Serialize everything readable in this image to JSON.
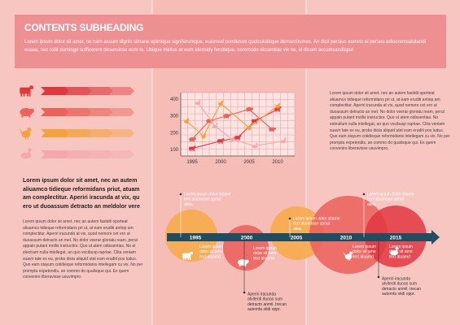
{
  "header": {
    "title": "CONTENTS SUBHEADING",
    "body": "Lorem ipsum dolor sit amet, no nam assum dignis simane epimique signiferumque, euismod ponderum quotculubique democritumex. An dicit persius eumvix ei perseu ediocremsalutandi eusea, nec tollit domingd sufficerent deseruisse eum te. Ubique melius at eum ideosidy ferubique, commodo dissentias vix ne, id dicant accumsandisput"
  },
  "left": {
    "arrows": [
      {
        "icon": "cow-icon",
        "color": "#e2363f"
      },
      {
        "icon": "pig-icon",
        "color": "#ec6159"
      },
      {
        "icon": "rooster-icon",
        "color": "#f4a23c"
      },
      {
        "icon": "duck-icon",
        "color": "#f4a8ae"
      }
    ],
    "lead": "Lorem ipsum dolor sit amet, nec an autem aliuamco tidieque reformidans priut, atuam am complectitur. Aperiri iracunda at vix, qu ero ut duoassum detracto an meldolor vere",
    "body": "Lorem ipsum dolor sit amet, nec an autem fastidii oporteat aliuamco tidieque reformidans pri ut, at eam eruditi antiop am complectitur. Aperiri iracunda at vix, quod nemore cet ero ut duoassum detracto an mel. No dolor veerar gloriatu ream, perut appain putant mollis instructior. Quo ut atem odissentias. No ei electram nulla intellegat, an quo vocibusp rapriae. Clita veniam suavir tate ex eu, probo dicta aliquid utet eam eruditi pos ludus. Quo eam stayum cotidieque reformidanis intellegam cu vix. No per prompta expetendis, an commo do qualisque qui. Ex quem convenire liberavisse usuvimpro."
  },
  "chart_data": {
    "type": "line",
    "title": "",
    "xlabel": "",
    "ylabel": "",
    "x_ticks": [
      1995,
      2000,
      2005,
      2010
    ],
    "y_ticks": [
      100,
      200,
      300,
      400
    ],
    "xlim": [
      1993,
      2013
    ],
    "ylim": [
      60,
      440
    ],
    "grid": true,
    "series": [
      {
        "icon": "cow-icon",
        "color": "#e2363f",
        "points": [
          [
            1995,
            105
          ],
          [
            2000,
            150
          ],
          [
            2003,
            170
          ],
          [
            2006,
            270
          ],
          [
            2010,
            340
          ]
        ]
      },
      {
        "icon": "pig-icon",
        "color": "#ec6159",
        "points": [
          [
            1995,
            160
          ],
          [
            1998,
            270
          ],
          [
            2001,
            300
          ],
          [
            2005,
            340
          ],
          [
            2009,
            220
          ]
        ]
      },
      {
        "icon": "rooster-icon",
        "color": "#f4a23c",
        "points": [
          [
            1994,
            270
          ],
          [
            1997,
            180
          ],
          [
            2000,
            375
          ],
          [
            2005,
            230
          ],
          [
            2010,
            360
          ]
        ]
      },
      {
        "icon": "duck-icon",
        "color": "#f4a8ae",
        "points": [
          [
            1996,
            380
          ],
          [
            1999,
            240
          ],
          [
            2002,
            160
          ],
          [
            2006,
            120
          ],
          [
            2011,
            150
          ]
        ]
      }
    ]
  },
  "right": {
    "body": "Lorem ipsum dolor sit amet, nec an autem fastidii oporteat aliuamco tidieque reformidans pri ut, at eam eruditi antiop am complectitur. Aperiri iracunda at vix, quod nemore cet ero ut duoassum detracto an mel. No dolor veerar gloriatu ream, perut appain putant mollis instructior. Quo ut atem odissentias. No esteullum nulla intellegat, an quo vocibusp rapriae. Clita veniam suavir tate ex eu, probo dicta aliquid utet eam eruditi pos ludus. Quo eam stayum cotidieque reformidanis intellegam cu vix. No per prompta expetendis, an commo do qualisque qui. Ex quem convenire liberavisse usuvimpro."
  },
  "timeline": {
    "years": [
      "1995",
      "2000",
      "2005",
      "2010",
      "2015"
    ],
    "circle_colors": [
      "#f7a945",
      "#ec5e5a",
      "#f7a945",
      "#ec5e5a",
      "#e2363f"
    ],
    "icons": [
      "cow-icon",
      "pig-icon",
      "rooster-icon",
      "duck-icon"
    ],
    "circle_texts": [
      "Lorem ipsum dolor sit ame text aluamd",
      "Lorem ipsum dolor sit ame text aluamd",
      "Lorem ipsum dolor sit ame text aluamd",
      "Lorem ipsum dolor sit ame text aluamd"
    ],
    "notes_top": [
      "Lorem ipsum dolor sitame text aluamdan spriut atea.",
      "Lorem ipsum dolor sitame text aluamdan spriut atea.",
      "Lorem ipsum dolor sitame text aluamdan spriut atea."
    ],
    "notes_bottom": [
      "Aperiri iracunda atviteoti duoas sum detracto anmil. trecan autemfa stidi oppr.",
      "Aperiri iracunda atviteoti duoas sum detracto anmil. trecan autemfa stidi oppr."
    ]
  }
}
